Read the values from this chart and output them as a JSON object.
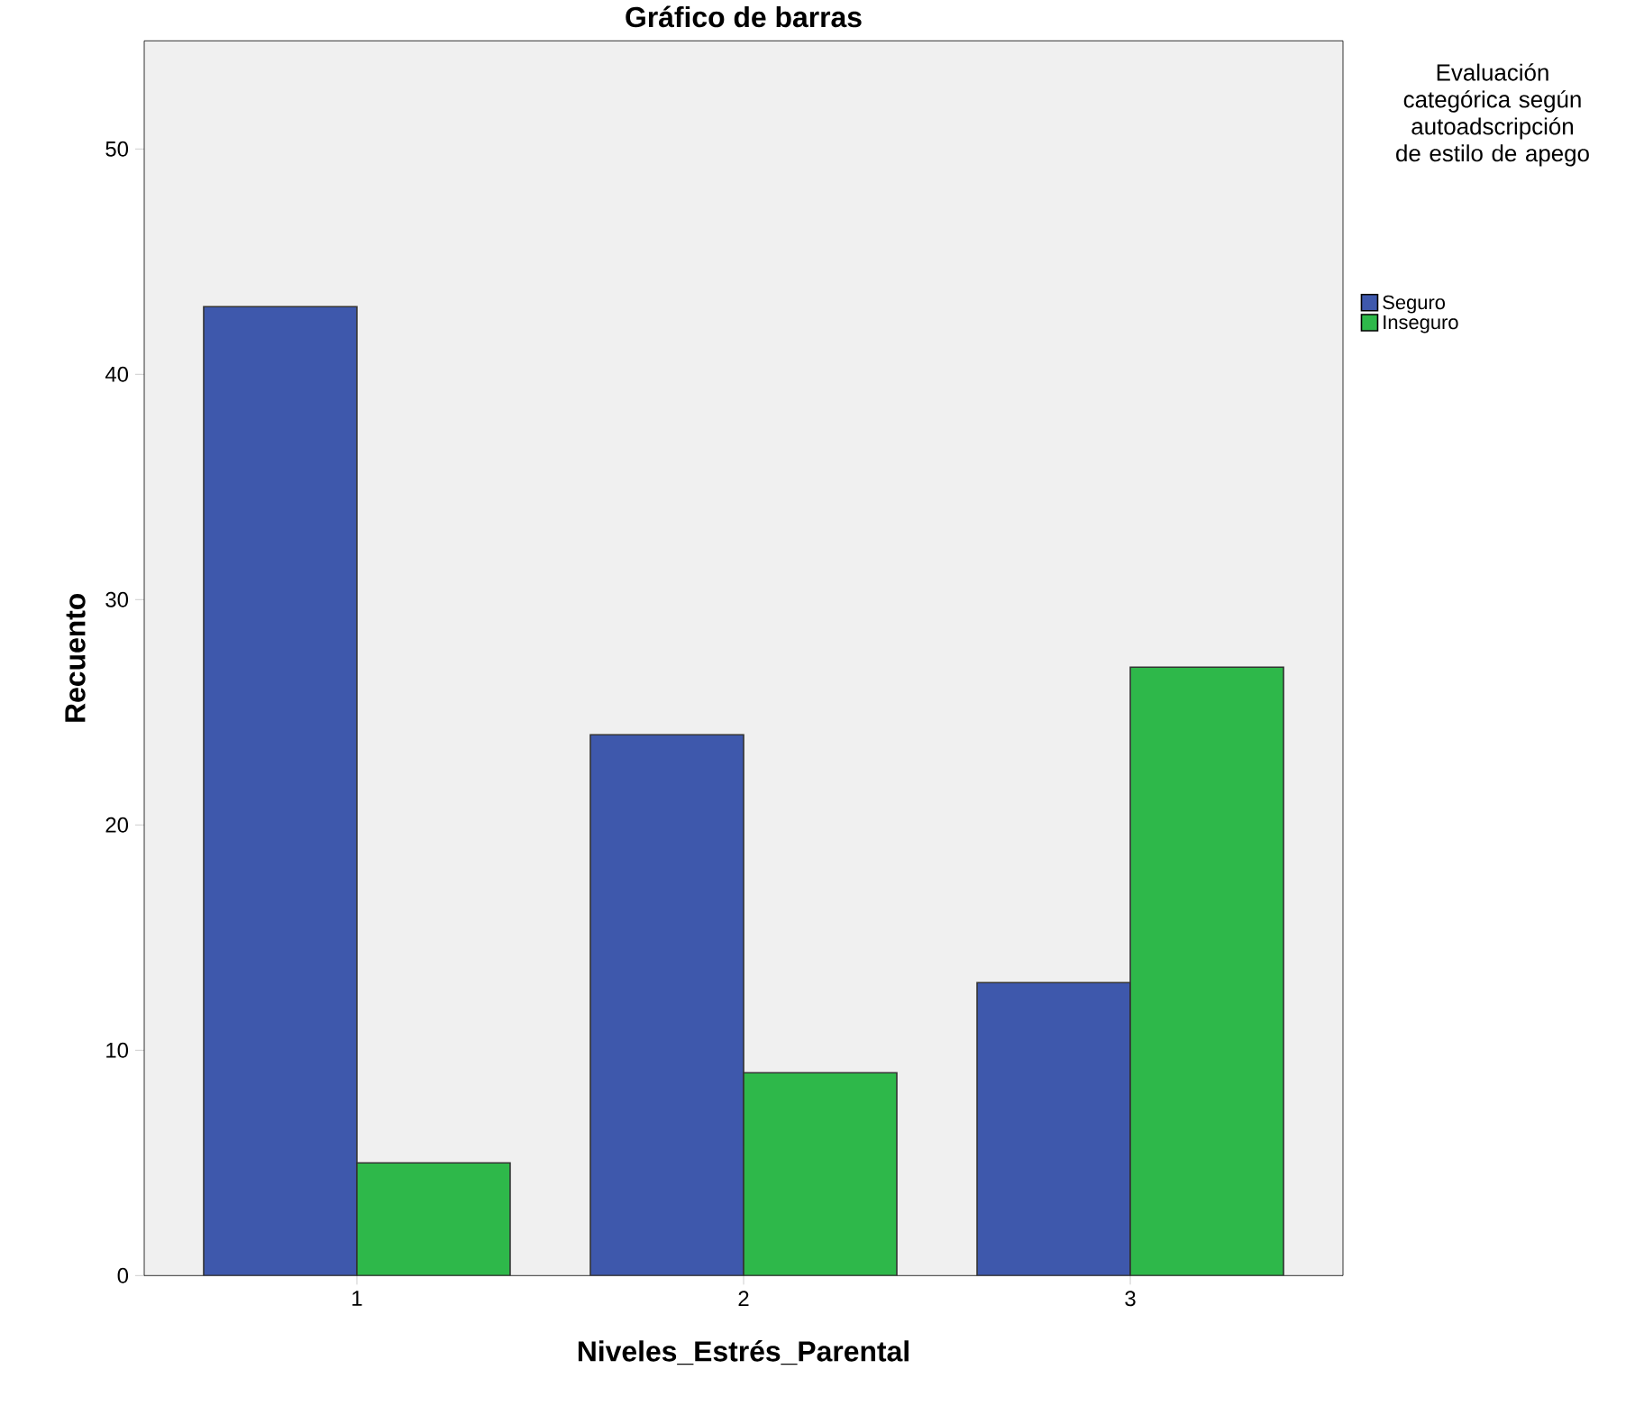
{
  "chart_data": {
    "type": "bar",
    "title": "Gráfico de barras",
    "xlabel": "Niveles_Estrés_Parental",
    "ylabel": "Recuento",
    "legend_title": "Evaluación categórica según autoadscripción de estilo de apego",
    "categories": [
      "1",
      "2",
      "3"
    ],
    "series": [
      {
        "name": "Seguro",
        "color": "#3e58ac",
        "values": [
          43,
          24,
          13
        ]
      },
      {
        "name": "Inseguro",
        "color": "#2eb84a",
        "values": [
          5,
          9,
          27
        ]
      }
    ],
    "ylim": [
      0,
      54.8
    ],
    "yticks": [
      0,
      10,
      20,
      30,
      40,
      50
    ],
    "grid": false,
    "legend": "right"
  }
}
